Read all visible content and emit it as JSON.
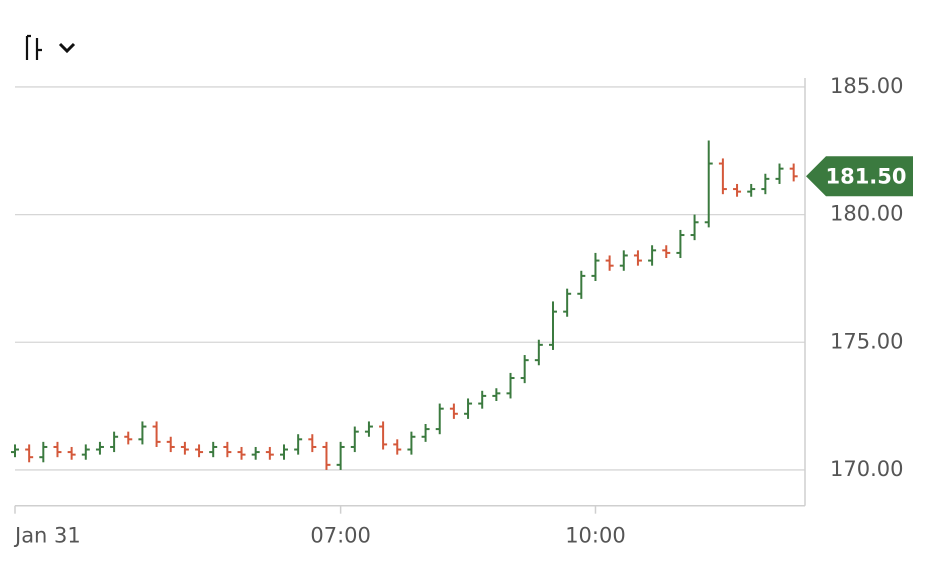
{
  "chart_data": {
    "type": "ohlc",
    "x": [
      "03:10",
      "03:20",
      "03:30",
      "03:40",
      "03:50",
      "04:00",
      "04:10",
      "04:20",
      "04:30",
      "04:40",
      "04:50",
      "05:00",
      "05:10",
      "05:20",
      "05:30",
      "05:40",
      "05:50",
      "06:00",
      "06:10",
      "06:20",
      "06:30",
      "06:40",
      "06:50",
      "07:00",
      "07:10",
      "07:20",
      "07:30",
      "07:40",
      "07:50",
      "08:00",
      "08:10",
      "08:20",
      "08:30",
      "08:40",
      "08:50",
      "09:00",
      "09:10",
      "09:20",
      "09:30",
      "09:40",
      "09:50",
      "10:00",
      "10:10",
      "10:20",
      "10:30",
      "10:40",
      "10:50",
      "11:00",
      "11:10",
      "11:20",
      "11:30",
      "11:40",
      "11:50",
      "12:00",
      "12:10",
      "12:20"
    ],
    "open": [
      170.7,
      170.8,
      170.5,
      170.9,
      170.7,
      170.6,
      170.8,
      170.9,
      171.3,
      171.2,
      171.7,
      171.1,
      170.9,
      170.8,
      170.7,
      170.9,
      170.7,
      170.6,
      170.7,
      170.6,
      170.8,
      171.2,
      170.9,
      170.2,
      170.9,
      171.5,
      171.7,
      171.0,
      170.8,
      171.3,
      171.6,
      172.4,
      172.2,
      172.6,
      172.9,
      173.0,
      173.6,
      174.3,
      174.9,
      176.2,
      176.9,
      177.6,
      178.2,
      178.0,
      178.4,
      178.2,
      178.6,
      178.5,
      179.2,
      179.7,
      182.0,
      181.0,
      180.9,
      181.0,
      181.4,
      181.8
    ],
    "high": [
      171.0,
      171.0,
      171.1,
      171.1,
      170.9,
      171.0,
      171.1,
      171.5,
      171.5,
      171.9,
      171.9,
      171.3,
      171.1,
      171.0,
      171.1,
      171.1,
      170.9,
      170.9,
      170.9,
      171.0,
      171.4,
      171.4,
      171.1,
      171.1,
      171.7,
      171.9,
      171.9,
      171.2,
      171.5,
      171.8,
      172.6,
      172.6,
      172.8,
      173.1,
      173.2,
      173.8,
      174.5,
      175.1,
      176.6,
      177.1,
      177.8,
      178.5,
      178.4,
      178.6,
      178.6,
      178.8,
      178.8,
      179.4,
      180.0,
      182.9,
      182.2,
      181.2,
      181.2,
      181.6,
      182.0,
      182.0
    ],
    "low": [
      170.5,
      170.3,
      170.3,
      170.5,
      170.4,
      170.4,
      170.6,
      170.7,
      171.0,
      171.0,
      170.9,
      170.7,
      170.6,
      170.5,
      170.5,
      170.5,
      170.4,
      170.4,
      170.4,
      170.4,
      170.6,
      170.7,
      170.0,
      170.0,
      170.7,
      171.3,
      170.8,
      170.6,
      170.6,
      171.1,
      171.4,
      172.0,
      172.0,
      172.4,
      172.7,
      172.8,
      173.4,
      174.1,
      174.7,
      176.0,
      176.7,
      177.4,
      177.8,
      177.8,
      178.0,
      178.0,
      178.3,
      178.3,
      179.0,
      179.5,
      180.8,
      180.7,
      180.7,
      180.8,
      181.2,
      181.3
    ],
    "close": [
      170.8,
      170.5,
      170.9,
      170.7,
      170.6,
      170.8,
      170.9,
      171.3,
      171.2,
      171.7,
      171.1,
      170.9,
      170.8,
      170.7,
      170.9,
      170.7,
      170.6,
      170.7,
      170.6,
      170.8,
      171.2,
      170.9,
      170.2,
      170.9,
      171.5,
      171.7,
      171.0,
      170.8,
      171.3,
      171.6,
      172.4,
      172.2,
      172.6,
      172.9,
      173.0,
      173.6,
      174.3,
      174.9,
      176.2,
      176.9,
      177.6,
      178.2,
      178.0,
      178.4,
      178.2,
      178.6,
      178.5,
      179.2,
      179.7,
      182.0,
      181.0,
      180.9,
      181.0,
      181.4,
      181.8,
      181.5
    ],
    "up_color": "#3b7a3f",
    "down_color": "#d4583a",
    "xlim": [
      "03:10",
      "12:28"
    ],
    "xticks": [
      {
        "value": "03:10",
        "label": "Jan 31"
      },
      "07:00",
      "10:00"
    ],
    "ylim": [
      168.6,
      185.35
    ],
    "yticks": [
      {
        "value": 170,
        "label": "170.00"
      },
      {
        "value": 175,
        "label": "175.00"
      },
      {
        "value": 180,
        "label": "180.00"
      },
      {
        "value": 185,
        "label": "185.00"
      }
    ],
    "grid": true,
    "last_price": {
      "value": 181.5,
      "label": "181.50",
      "color": "#3b7a3f"
    }
  }
}
